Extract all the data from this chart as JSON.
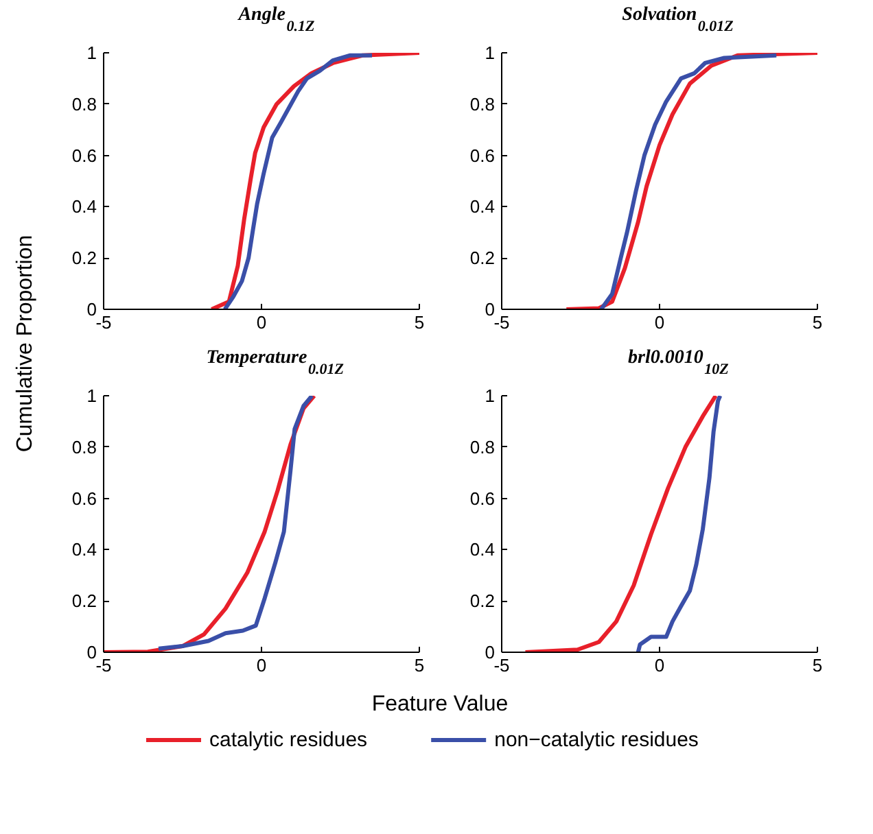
{
  "chart_data": [
    {
      "type": "line",
      "title": "Angle$_{0.1Z}$",
      "ylabel": "Cumulative Proportion",
      "xlabel": "Feature Value",
      "legend": "bottom",
      "xlim": [
        -5,
        5
      ],
      "xticks": [
        -5,
        0,
        5
      ],
      "ylim": [
        0,
        1
      ],
      "yticks": [
        0,
        0.2,
        0.4,
        0.6,
        0.8,
        1
      ],
      "grid": false,
      "series": [
        {
          "name": "catalytic residues",
          "color": "#e8202a",
          "x": [
            -1.58,
            -1.03,
            -0.75,
            -0.55,
            -0.34,
            -0.2,
            0.07,
            0.48,
            1.03,
            1.58,
            2.26,
            3.2,
            5
          ],
          "values": [
            0,
            0.03,
            0.17,
            0.35,
            0.51,
            0.61,
            0.71,
            0.8,
            0.87,
            0.92,
            0.96,
            0.99,
            1
          ]
        },
        {
          "name": "non−catalytic residues",
          "color": "#3a4fa8",
          "x": [
            -1.16,
            -0.89,
            -0.62,
            -0.41,
            -0.27,
            -0.14,
            0.07,
            0.34,
            0.62,
            0.89,
            1.16,
            1.44,
            1.85,
            2.26,
            2.81,
            3.5
          ],
          "values": [
            0,
            0.05,
            0.11,
            0.2,
            0.31,
            0.41,
            0.53,
            0.67,
            0.73,
            0.79,
            0.85,
            0.9,
            0.93,
            0.97,
            0.99,
            0.99
          ]
        }
      ]
    },
    {
      "type": "line",
      "title": "Solvation$_{0.01Z}$",
      "xlim": [
        -5,
        5
      ],
      "xticks": [
        -5,
        0,
        5
      ],
      "ylim": [
        0,
        1
      ],
      "yticks": [
        0,
        0.2,
        0.4,
        0.6,
        0.8,
        1
      ],
      "grid": false,
      "series": [
        {
          "name": "catalytic residues",
          "color": "#e8202a",
          "x": [
            -2.95,
            -1.92,
            -1.5,
            -1.1,
            -0.68,
            -0.41,
            0,
            0.41,
            0.96,
            1.64,
            2.47,
            5
          ],
          "values": [
            0,
            0.004,
            0.03,
            0.16,
            0.34,
            0.48,
            0.64,
            0.76,
            0.88,
            0.95,
            0.99,
            1
          ]
        },
        {
          "name": "non−catalytic residues",
          "color": "#3a4fa8",
          "x": [
            -1.85,
            -1.5,
            -1.23,
            -1.03,
            -0.75,
            -0.48,
            -0.14,
            0.21,
            0.68,
            1.1,
            1.44,
            2.05,
            3.7
          ],
          "values": [
            0,
            0.06,
            0.2,
            0.3,
            0.46,
            0.6,
            0.72,
            0.81,
            0.9,
            0.92,
            0.96,
            0.98,
            0.99
          ]
        }
      ]
    },
    {
      "type": "line",
      "title": "Temperature$_{0.01Z}$",
      "xlim": [
        -5,
        5
      ],
      "xticks": [
        -5,
        0,
        5
      ],
      "ylim": [
        0,
        1
      ],
      "yticks": [
        0,
        0.2,
        0.4,
        0.6,
        0.8,
        1
      ],
      "grid": false,
      "series": [
        {
          "name": "catalytic residues",
          "color": "#e8202a",
          "x": [
            -5,
            -3.6,
            -2.5,
            -1.82,
            -1.14,
            -0.45,
            0.1,
            0.51,
            0.92,
            1.33,
            1.67
          ],
          "values": [
            0,
            0.002,
            0.024,
            0.07,
            0.17,
            0.31,
            0.47,
            0.63,
            0.81,
            0.95,
            1
          ]
        },
        {
          "name": "non−catalytic residues",
          "color": "#3a4fa8",
          "x": [
            -3.26,
            -2.5,
            -1.68,
            -1.14,
            -0.59,
            -0.18,
            0.1,
            0.44,
            0.71,
            0.92,
            1.05,
            1.33,
            1.6
          ],
          "values": [
            0.014,
            0.024,
            0.044,
            0.074,
            0.084,
            0.104,
            0.21,
            0.35,
            0.47,
            0.71,
            0.87,
            0.96,
            1
          ]
        }
      ]
    },
    {
      "type": "line",
      "title": "brl0.0010$_{10Z}$",
      "xlim": [
        -5,
        5
      ],
      "xticks": [
        -5,
        0,
        5
      ],
      "ylim": [
        0,
        1
      ],
      "yticks": [
        0,
        0.2,
        0.4,
        0.6,
        0.8,
        1
      ],
      "grid": false,
      "series": [
        {
          "name": "catalytic residues",
          "color": "#e8202a",
          "x": [
            -4.25,
            -2.6,
            -1.92,
            -1.37,
            -0.82,
            -0.27,
            0.27,
            0.82,
            1.37,
            1.78
          ],
          "values": [
            0,
            0.01,
            0.04,
            0.12,
            0.26,
            0.46,
            0.64,
            0.8,
            0.92,
            1
          ]
        },
        {
          "name": "non−catalytic residues",
          "color": "#3a4fa8",
          "x": [
            -0.68,
            -0.62,
            -0.27,
            0.21,
            0.41,
            0.68,
            0.96,
            1.16,
            1.37,
            1.58,
            1.71,
            1.85,
            1.92
          ],
          "values": [
            0,
            0.03,
            0.06,
            0.06,
            0.12,
            0.18,
            0.24,
            0.34,
            0.48,
            0.68,
            0.86,
            0.98,
            1
          ]
        }
      ]
    }
  ]
}
